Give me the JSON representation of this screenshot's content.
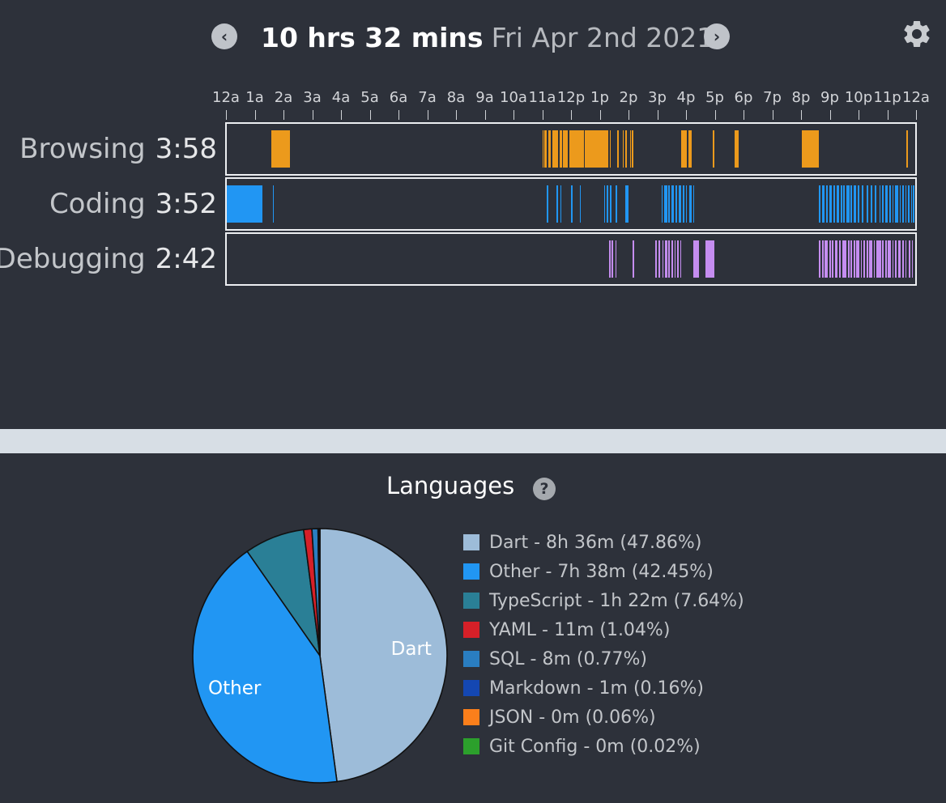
{
  "header": {
    "total_time": "10 hrs 32 mins",
    "date": "Fri Apr 2nd 2021",
    "prev_icon": "chevron-left-circle-icon",
    "next_icon": "chevron-right-circle-icon",
    "settings_icon": "gear-icon"
  },
  "timeline": {
    "hour_labels": [
      "12a",
      "1a",
      "2a",
      "3a",
      "4a",
      "5a",
      "6a",
      "7a",
      "8a",
      "9a",
      "10a",
      "11a",
      "12p",
      "1p",
      "2p",
      "3p",
      "4p",
      "5p",
      "6p",
      "7p",
      "8p",
      "9p",
      "10p",
      "11p",
      "12a"
    ],
    "rows": [
      {
        "name": "Browsing",
        "duration": "3:58",
        "color": "#ec9a1c",
        "segments": [
          [
            1.55,
            2.2
          ],
          [
            11.0,
            11.05
          ],
          [
            11.08,
            11.16
          ],
          [
            11.2,
            11.3
          ],
          [
            11.35,
            11.55
          ],
          [
            11.6,
            11.7
          ],
          [
            11.72,
            11.75
          ],
          [
            11.78,
            11.9
          ],
          [
            11.95,
            12.45
          ],
          [
            12.48,
            12.52
          ],
          [
            12.55,
            13.3
          ],
          [
            13.35,
            13.38
          ],
          [
            13.62,
            13.66
          ],
          [
            13.8,
            13.84
          ],
          [
            13.9,
            13.93
          ],
          [
            14.05,
            14.1
          ],
          [
            14.12,
            14.15
          ],
          [
            15.85,
            16.05
          ],
          [
            16.1,
            16.2
          ],
          [
            16.95,
            17.0
          ],
          [
            17.7,
            17.85
          ],
          [
            20.05,
            20.65
          ],
          [
            23.7,
            23.75
          ]
        ]
      },
      {
        "name": "Coding",
        "duration": "3:52",
        "color": "#2196f3",
        "segments": [
          [
            0.0,
            1.25
          ],
          [
            1.6,
            1.63
          ],
          [
            11.15,
            11.22
          ],
          [
            11.5,
            11.55
          ],
          [
            11.62,
            11.66
          ],
          [
            12.0,
            12.05
          ],
          [
            12.3,
            12.34
          ],
          [
            13.15,
            13.2
          ],
          [
            13.25,
            13.3
          ],
          [
            13.35,
            13.4
          ],
          [
            13.55,
            13.6
          ],
          [
            13.88,
            14.0
          ],
          [
            15.15,
            15.2
          ],
          [
            15.25,
            15.35
          ],
          [
            15.4,
            15.45
          ],
          [
            15.5,
            15.6
          ],
          [
            15.65,
            15.7
          ],
          [
            15.75,
            15.85
          ],
          [
            15.9,
            15.95
          ],
          [
            16.0,
            16.05
          ],
          [
            16.12,
            16.2
          ],
          [
            16.25,
            16.3
          ],
          [
            20.65,
            20.7
          ],
          [
            20.75,
            20.85
          ],
          [
            20.9,
            20.95
          ],
          [
            21.0,
            21.1
          ],
          [
            21.15,
            21.2
          ],
          [
            21.25,
            21.35
          ],
          [
            21.4,
            21.45
          ],
          [
            21.5,
            21.55
          ],
          [
            21.6,
            21.7
          ],
          [
            21.75,
            21.8
          ],
          [
            21.85,
            21.95
          ],
          [
            22.0,
            22.05
          ],
          [
            22.15,
            22.2
          ],
          [
            22.3,
            22.35
          ],
          [
            22.45,
            22.5
          ],
          [
            22.6,
            22.65
          ],
          [
            22.75,
            22.8
          ],
          [
            22.85,
            22.9
          ],
          [
            22.95,
            23.05
          ],
          [
            23.1,
            23.15
          ],
          [
            23.2,
            23.25
          ],
          [
            23.3,
            23.4
          ],
          [
            23.45,
            23.5
          ],
          [
            23.55,
            23.6
          ],
          [
            23.65,
            23.7
          ],
          [
            23.75,
            23.8
          ],
          [
            23.85,
            23.9
          ],
          [
            23.92,
            23.97
          ]
        ]
      },
      {
        "name": "Debugging",
        "duration": "2:42",
        "color": "#c58df0",
        "segments": [
          [
            13.32,
            13.38
          ],
          [
            13.4,
            13.48
          ],
          [
            13.55,
            13.58
          ],
          [
            14.15,
            14.18
          ],
          [
            14.95,
            15.0
          ],
          [
            15.05,
            15.12
          ],
          [
            15.18,
            15.22
          ],
          [
            15.28,
            15.35
          ],
          [
            15.4,
            15.45
          ],
          [
            15.5,
            15.55
          ],
          [
            15.6,
            15.65
          ],
          [
            15.7,
            15.75
          ],
          [
            15.8,
            15.85
          ],
          [
            16.25,
            16.45
          ],
          [
            16.7,
            17.0
          ],
          [
            20.65,
            20.7
          ],
          [
            20.75,
            20.8
          ],
          [
            20.85,
            20.95
          ],
          [
            21.0,
            21.05
          ],
          [
            21.1,
            21.15
          ],
          [
            21.2,
            21.3
          ],
          [
            21.35,
            21.4
          ],
          [
            21.45,
            21.6
          ],
          [
            21.65,
            21.7
          ],
          [
            21.75,
            21.8
          ],
          [
            21.85,
            21.9
          ],
          [
            21.95,
            22.05
          ],
          [
            22.1,
            22.15
          ],
          [
            22.2,
            22.25
          ],
          [
            22.3,
            22.35
          ],
          [
            22.4,
            22.5
          ],
          [
            22.55,
            22.6
          ],
          [
            22.65,
            22.8
          ],
          [
            22.85,
            22.9
          ],
          [
            22.95,
            23.0
          ],
          [
            23.05,
            23.15
          ],
          [
            23.2,
            23.25
          ],
          [
            23.3,
            23.35
          ],
          [
            23.4,
            23.5
          ],
          [
            23.55,
            23.6
          ],
          [
            23.65,
            23.7
          ],
          [
            23.78,
            23.82
          ],
          [
            23.88,
            23.92
          ]
        ]
      }
    ]
  },
  "languages": {
    "title": "Languages",
    "help_icon": "question-circle-icon",
    "chart_data": {
      "type": "pie",
      "slices": [
        {
          "name": "Dart",
          "percent": 47.86,
          "color": "#9dbcd9",
          "legend": "Dart - 8h 36m (47.86%)",
          "label": "Dart"
        },
        {
          "name": "Other",
          "percent": 42.45,
          "color": "#2196f3",
          "legend": "Other - 7h 38m (42.45%)",
          "label": "Other"
        },
        {
          "name": "TypeScript",
          "percent": 7.64,
          "color": "#2a7f96",
          "legend": "TypeScript - 1h 22m (7.64%)",
          "label": ""
        },
        {
          "name": "YAML",
          "percent": 1.04,
          "color": "#d62028",
          "legend": "YAML - 11m (1.04%)",
          "label": ""
        },
        {
          "name": "SQL",
          "percent": 0.77,
          "color": "#2a7ec1",
          "legend": "SQL - 8m (0.77%)",
          "label": ""
        },
        {
          "name": "Markdown",
          "percent": 0.16,
          "color": "#1447b2",
          "legend": "Markdown - 1m (0.16%)",
          "label": ""
        },
        {
          "name": "JSON",
          "percent": 0.06,
          "color": "#fb7f1b",
          "legend": "JSON - 0m (0.06%)",
          "label": ""
        },
        {
          "name": "Git Config",
          "percent": 0.02,
          "color": "#2ca02c",
          "legend": "Git Config - 0m (0.02%)",
          "label": ""
        }
      ]
    }
  }
}
